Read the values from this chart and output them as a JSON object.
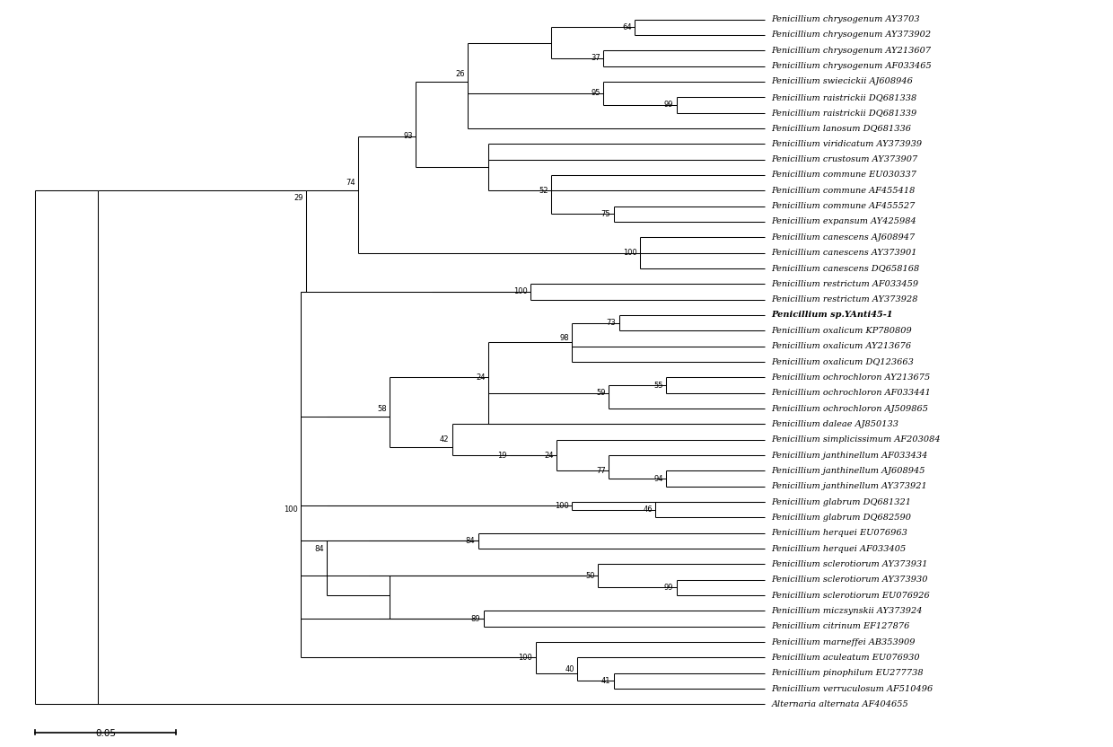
{
  "background_color": "#ffffff",
  "font_size_taxa": 7.0,
  "font_size_bootstrap": 6.0,
  "taxa": [
    {
      "name": "Penicillium chrysogenum AY3703",
      "y": 1,
      "bold": false
    },
    {
      "name": "Penicillium chrysogenum AY373902",
      "y": 2,
      "bold": false
    },
    {
      "name": "Penicillium chrysogenum AY213607",
      "y": 3,
      "bold": false
    },
    {
      "name": "Penicillium chrysogenum AF033465",
      "y": 4,
      "bold": false
    },
    {
      "name": "Penicillium swiecickii AJ608946",
      "y": 5,
      "bold": false
    },
    {
      "name": "Penicillium raistrickii DQ681338",
      "y": 6,
      "bold": false
    },
    {
      "name": "Penicillium raistrickii DQ681339",
      "y": 7,
      "bold": false
    },
    {
      "name": "Penicillium lanosum DQ681336",
      "y": 8,
      "bold": false
    },
    {
      "name": "Penicillium viridicatum AY373939",
      "y": 9,
      "bold": false
    },
    {
      "name": "Penicillium crustosum AY373907",
      "y": 10,
      "bold": false
    },
    {
      "name": "Penicillium commune EU030337",
      "y": 11,
      "bold": false
    },
    {
      "name": "Penicillium commune AF455418",
      "y": 12,
      "bold": false
    },
    {
      "name": "Penicillium commune AF455527",
      "y": 13,
      "bold": false
    },
    {
      "name": "Penicillium expansum AY425984",
      "y": 14,
      "bold": false
    },
    {
      "name": "Penicillium canescens AJ608947",
      "y": 15,
      "bold": false
    },
    {
      "name": "Penicillium canescens AY373901",
      "y": 16,
      "bold": false
    },
    {
      "name": "Penicillium canescens DQ658168",
      "y": 17,
      "bold": false
    },
    {
      "name": "Penicillium restrictum AF033459",
      "y": 18,
      "bold": false
    },
    {
      "name": "Penicillium restrictum AY373928",
      "y": 19,
      "bold": false
    },
    {
      "name": "Penicillium sp.YAnti45-1",
      "y": 20,
      "bold": true
    },
    {
      "name": "Penicillium oxalicum KP780809",
      "y": 21,
      "bold": false
    },
    {
      "name": "Penicillium oxalicum AY213676",
      "y": 22,
      "bold": false
    },
    {
      "name": "Penicillium oxalicum DQ123663",
      "y": 23,
      "bold": false
    },
    {
      "name": "Penicillium ochrochloron AY213675",
      "y": 24,
      "bold": false
    },
    {
      "name": "Penicillium ochrochloron AF033441",
      "y": 25,
      "bold": false
    },
    {
      "name": "Penicillium ochrochloron AJ509865",
      "y": 26,
      "bold": false
    },
    {
      "name": "Penicillium daleae AJ850133",
      "y": 27,
      "bold": false
    },
    {
      "name": "Penicillium simplicissimum AF203084",
      "y": 28,
      "bold": false
    },
    {
      "name": "Penicillium janthinellum AF033434",
      "y": 29,
      "bold": false
    },
    {
      "name": "Penicillium janthinellum AJ608945",
      "y": 30,
      "bold": false
    },
    {
      "name": "Penicillium janthinellum AY373921",
      "y": 31,
      "bold": false
    },
    {
      "name": "Penicillium glabrum DQ681321",
      "y": 32,
      "bold": false
    },
    {
      "name": "Penicillium glabrum DQ682590",
      "y": 33,
      "bold": false
    },
    {
      "name": "Penicillium herquei EU076963",
      "y": 34,
      "bold": false
    },
    {
      "name": "Penicillium herquei AF033405",
      "y": 35,
      "bold": false
    },
    {
      "name": "Penicillium sclerotiorum AY373931",
      "y": 36,
      "bold": false
    },
    {
      "name": "Penicillium sclerotiorum AY373930",
      "y": 37,
      "bold": false
    },
    {
      "name": "Penicillium sclerotiorum EU076926",
      "y": 38,
      "bold": false
    },
    {
      "name": "Penicillium miczsynskii AY373924",
      "y": 39,
      "bold": false
    },
    {
      "name": "Penicillium citrinum EF127876",
      "y": 40,
      "bold": false
    },
    {
      "name": "Penicillium marneffei AB353909",
      "y": 41,
      "bold": false
    },
    {
      "name": "Penicillium aculeatum EU076930",
      "y": 42,
      "bold": false
    },
    {
      "name": "Penicillium pinophilum EU277738",
      "y": 43,
      "bold": false
    },
    {
      "name": "Penicillium verruculosum AF510496",
      "y": 44,
      "bold": false
    },
    {
      "name": "Alternaria alternata AF404655",
      "y": 45,
      "bold": false
    }
  ]
}
